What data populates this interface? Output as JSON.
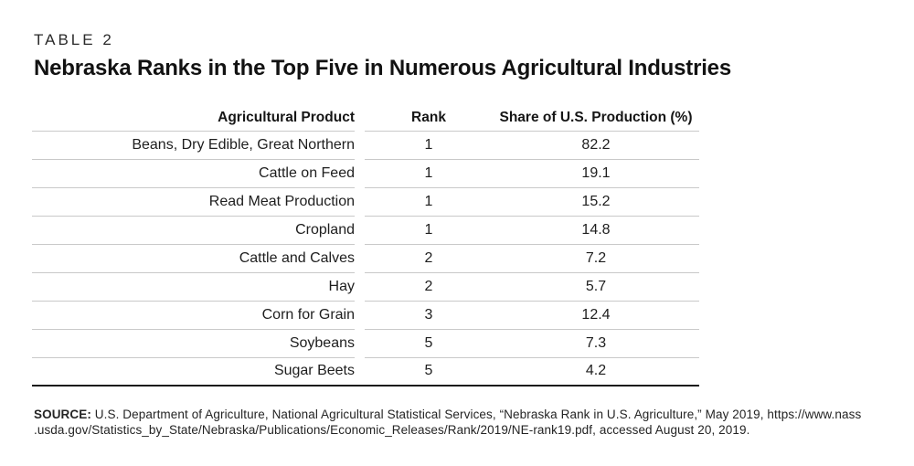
{
  "header": {
    "table_label": "TABLE 2",
    "title": "Nebraska Ranks in the Top Five in Numerous Agricultural Industries"
  },
  "table": {
    "columns": [
      "Agricultural Product",
      "Rank",
      "Share of U.S. Production (%)"
    ],
    "rows": [
      {
        "product": "Beans, Dry Edible, Great Northern",
        "rank": "1",
        "share": "82.2"
      },
      {
        "product": "Cattle on Feed",
        "rank": "1",
        "share": "19.1"
      },
      {
        "product": "Read Meat Production",
        "rank": "1",
        "share": "15.2"
      },
      {
        "product": "Cropland",
        "rank": "1",
        "share": "14.8"
      },
      {
        "product": "Cattle and Calves",
        "rank": "2",
        "share": "7.2"
      },
      {
        "product": "Hay",
        "rank": "2",
        "share": "5.7"
      },
      {
        "product": "Corn for Grain",
        "rank": "3",
        "share": "12.4"
      },
      {
        "product": "Soybeans",
        "rank": "5",
        "share": "7.3"
      },
      {
        "product": "Sugar Beets",
        "rank": "5",
        "share": "4.2"
      }
    ]
  },
  "source": {
    "label": "SOURCE:",
    "line1": " U.S. Department of Agriculture, National Agricultural Statistical Services, “Nebraska Rank in U.S. Agriculture,” May 2019, https://www.nass",
    "line2": ".usda.gov/Statistics_by_State/Nebraska/Publications/Economic_Releases/Rank/2019/NE-rank19.pdf, accessed August 20, 2019."
  },
  "colors": {
    "text": "#1c1c1c",
    "row_divider": "#c9c9c9",
    "table_bottom_rule": "#1a1a1a",
    "background": "#ffffff"
  }
}
